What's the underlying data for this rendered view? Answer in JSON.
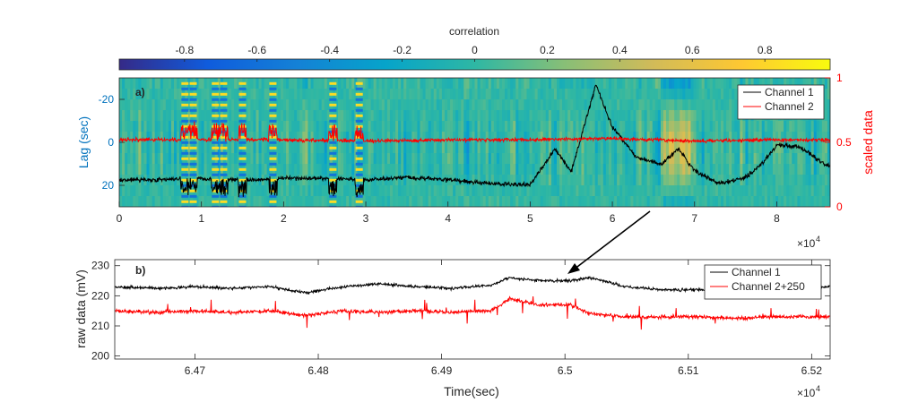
{
  "colorbar": {
    "label": "correlation",
    "ticks": [
      "-0.8",
      "-0.6",
      "-0.4",
      "-0.2",
      "0",
      "0.2",
      "0.4",
      "0.6",
      "0.8"
    ],
    "range": [
      -0.98,
      0.98
    ],
    "colormap": [
      "#352a87",
      "#0f5cdd",
      "#1481d6",
      "#06a4ca",
      "#2eb7a4",
      "#87bf77",
      "#d1bb59",
      "#fec832",
      "#f9fb0e"
    ]
  },
  "chart_data": [
    {
      "type": "heatmap",
      "panel_label": "a)",
      "xlabel": "",
      "x_multiplier": "×10^4",
      "x_ticks": [
        "0",
        "1",
        "2",
        "3",
        "4",
        "5",
        "6",
        "7",
        "8"
      ],
      "xlim": [
        0,
        8.65
      ],
      "ylabel": "Lag (sec)",
      "y_ticks": [
        "-20",
        "0",
        "20"
      ],
      "ylim": [
        -30,
        30
      ],
      "y2label": "scaled data",
      "y2_ticks": [
        "0",
        "0.5",
        "1"
      ],
      "y2lim": [
        0,
        1
      ],
      "y2_color": "#ff0000",
      "series": [
        {
          "name": "Channel 1",
          "color": "#000000",
          "x": [
            0,
            0.5,
            1.0,
            1.5,
            2.0,
            2.5,
            3.0,
            3.5,
            4.0,
            4.5,
            5.0,
            5.3,
            5.5,
            5.8,
            6.0,
            6.3,
            6.6,
            6.8,
            7.0,
            7.3,
            7.6,
            7.8,
            8.0,
            8.3,
            8.6
          ],
          "y": [
            0.21,
            0.21,
            0.22,
            0.21,
            0.22,
            0.22,
            0.21,
            0.23,
            0.21,
            0.18,
            0.17,
            0.45,
            0.27,
            0.95,
            0.62,
            0.38,
            0.33,
            0.45,
            0.28,
            0.18,
            0.22,
            0.32,
            0.48,
            0.46,
            0.32
          ]
        },
        {
          "name": "Channel 2",
          "color": "#ff0000",
          "x": [
            0,
            1,
            2,
            3,
            4,
            5,
            6,
            7,
            8,
            8.6
          ],
          "y": [
            0.52,
            0.52,
            0.52,
            0.51,
            0.52,
            0.52,
            0.53,
            0.51,
            0.52,
            0.52
          ]
        }
      ],
      "legend": "top-right"
    },
    {
      "type": "line",
      "panel_label": "b)",
      "xlabel": "Time(sec)",
      "x_multiplier": "×10^4",
      "x_ticks": [
        "6.47",
        "6.48",
        "6.49",
        "6.5",
        "6.51",
        "6.52"
      ],
      "xlim": [
        6.4635,
        6.5215
      ],
      "ylabel": "raw data (mV)",
      "y_ticks": [
        "200",
        "210",
        "220",
        "230"
      ],
      "ylim": [
        199,
        232
      ],
      "series": [
        {
          "name": "Channel 1",
          "color": "#000000",
          "x": [
            6.4635,
            6.467,
            6.47,
            6.473,
            6.476,
            6.479,
            6.482,
            6.485,
            6.488,
            6.491,
            6.494,
            6.4955,
            6.498,
            6.5005,
            6.502,
            6.505,
            6.508,
            6.511,
            6.514,
            6.517,
            6.5215
          ],
          "y": [
            223,
            222.5,
            223,
            222.5,
            223,
            221,
            223,
            224,
            223,
            222.5,
            223.5,
            226,
            225,
            225,
            226,
            223,
            222,
            222,
            221.5,
            222,
            223
          ]
        },
        {
          "name": "Channel 2+250",
          "color": "#ff0000",
          "x": [
            6.4635,
            6.467,
            6.47,
            6.473,
            6.476,
            6.479,
            6.482,
            6.485,
            6.488,
            6.491,
            6.494,
            6.4955,
            6.498,
            6.5005,
            6.502,
            6.505,
            6.508,
            6.511,
            6.514,
            6.517,
            6.5215
          ],
          "y": [
            215,
            214.5,
            215,
            214.5,
            215,
            213.5,
            215,
            214.5,
            215,
            214.5,
            215,
            219,
            217,
            217,
            214,
            213,
            213,
            213,
            212.5,
            213,
            213
          ]
        }
      ],
      "legend": "top-right"
    }
  ],
  "arrow": {
    "from_panel": "a)",
    "to_panel": "b)"
  }
}
